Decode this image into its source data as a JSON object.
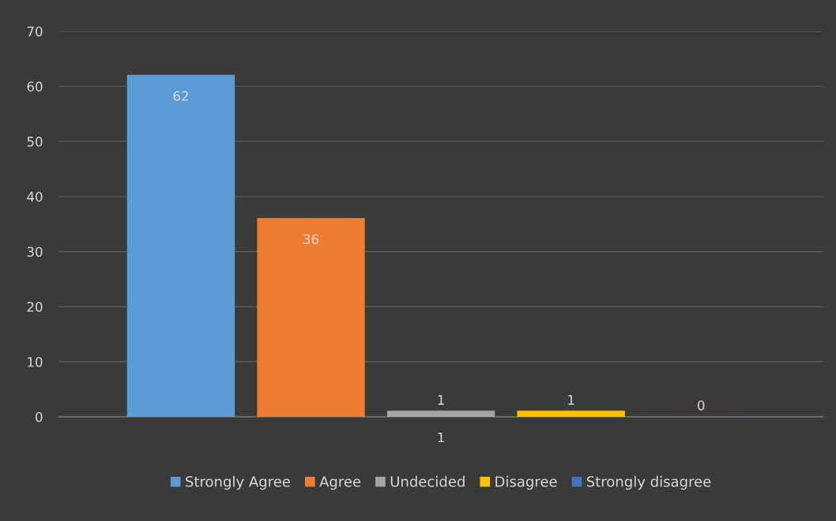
{
  "chart_data": {
    "type": "bar",
    "categories": [
      "1"
    ],
    "series": [
      {
        "name": "Strongly Agree",
        "color": "#5b9bd5",
        "values": [
          62
        ]
      },
      {
        "name": "Agree",
        "color": "#ed7d31",
        "values": [
          36
        ]
      },
      {
        "name": "Undecided",
        "color": "#a5a5a5",
        "values": [
          1
        ]
      },
      {
        "name": "Disagree",
        "color": "#ffc000",
        "values": [
          1
        ]
      },
      {
        "name": "Strongly disagree",
        "color": "#4472c4",
        "values": [
          0
        ]
      }
    ],
    "ylim": [
      0,
      70
    ],
    "yticks": [
      0,
      10,
      20,
      30,
      40,
      50,
      60,
      70
    ],
    "grid": "y",
    "legend": "bottom",
    "data_labels": true
  }
}
